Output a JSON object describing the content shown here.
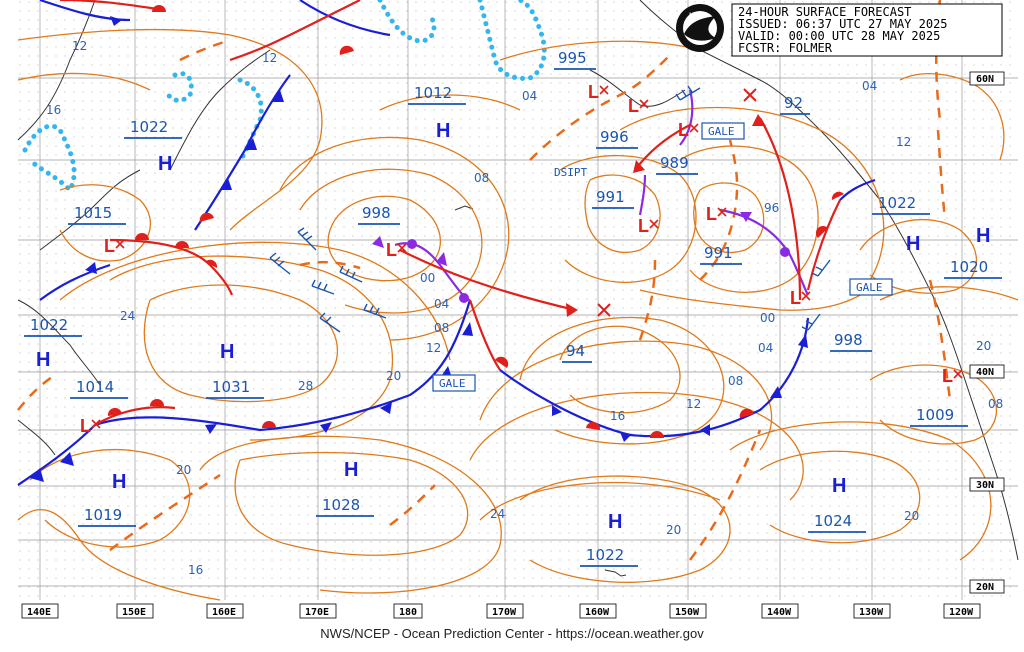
{
  "header": {
    "line1": "24-HOUR SURFACE FORECAST",
    "line2": "ISSUED: 06:37 UTC 27 MAY 2025",
    "line3": "VALID:  00:00 UTC 28 MAY 2025",
    "line4": "FCSTR:  FOLMER"
  },
  "logo": "NOAA",
  "credit": "NWS/NCEP - Ocean Prediction Center - https://ocean.weather.gov",
  "lat_labels": [
    "60N",
    "40N",
    "30N",
    "20N"
  ],
  "lon_labels": [
    "140E",
    "150E",
    "160E",
    "170E",
    "180",
    "170W",
    "160W",
    "150W",
    "140W",
    "130W",
    "120W"
  ],
  "highs": [
    "H",
    "H",
    "H",
    "H",
    "H",
    "H",
    "H",
    "H",
    "H",
    "H"
  ],
  "lows": [
    "L",
    "L",
    "L",
    "L",
    "L",
    "L",
    "L",
    "L",
    "L",
    "L"
  ],
  "pressure_values": [
    "1012",
    "1022",
    "1015",
    "998",
    "995",
    "996",
    "989",
    "991",
    "991",
    "92",
    "1022",
    "1020",
    "1022",
    "1031",
    "1014",
    "94",
    "998",
    "1009",
    "1028",
    "1019",
    "1024",
    "1022"
  ],
  "gale_tags": [
    "GALE",
    "GALE",
    "GALE"
  ],
  "dsipt": "DSIPT",
  "isobar_labels": [
    "12",
    "12",
    "16",
    "04",
    "08",
    "00",
    "04",
    "08",
    "12",
    "20",
    "24",
    "28",
    "20",
    "16",
    "12",
    "08",
    "04",
    "00",
    "96",
    "04",
    "12",
    "08",
    "20",
    "24",
    "20",
    "16",
    "20"
  ],
  "colors": {
    "isobar": "#e07a1a",
    "cold_front": "#1a1fd6",
    "warm_front": "#e0201a",
    "occluded": "#8a2be2",
    "ice": "#33b5f0",
    "grid": "#888888"
  }
}
